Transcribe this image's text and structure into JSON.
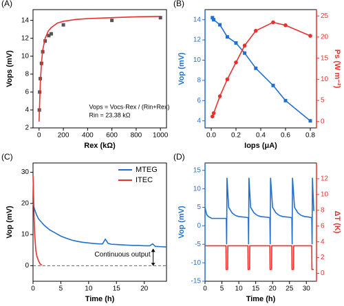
{
  "chart_data": [
    {
      "type": "scatter",
      "panel": "(A)",
      "xlabel": "Rex (kΩ)",
      "ylabel": "Vops (mV)",
      "xlim": [
        -50,
        1050
      ],
      "xticks": [
        0,
        200,
        400,
        600,
        800,
        1000
      ],
      "ylim": [
        2,
        15.2
      ],
      "yticks": [
        2,
        4,
        6,
        8,
        10,
        12,
        14
      ],
      "annotations": [
        "Vops = Vocs·Rex / (Rin+Rex)",
        "Rin = 23.38 kΩ"
      ],
      "series": [
        {
          "style": "markers",
          "color": "#555555",
          "x": [
            2,
            5,
            10,
            20,
            30,
            50,
            80,
            100,
            200,
            600,
            1000
          ],
          "values": [
            4.0,
            6.0,
            7.5,
            9.2,
            10.5,
            11.7,
            12.3,
            12.5,
            13.5,
            14.0,
            14.3
          ]
        },
        {
          "style": "line",
          "color": "#e8312f",
          "x": [
            0,
            5,
            10,
            20,
            30,
            50,
            75,
            100,
            150,
            200,
            300,
            400,
            600,
            800,
            1000
          ],
          "values": [
            2.7,
            5.0,
            7.0,
            9.3,
            10.7,
            12.0,
            12.8,
            13.2,
            13.7,
            13.9,
            14.1,
            14.2,
            14.3,
            14.4,
            14.45
          ]
        }
      ]
    },
    {
      "type": "line",
      "panel": "(B)",
      "xlabel": "Iops (μA)",
      "ylabel": "Vop (mV)",
      "y2label": "Ps (W m⁻²)",
      "xlim": [
        -0.05,
        0.85
      ],
      "xticks": [
        {
          "value": 0,
          "label": "0.0"
        },
        {
          "value": 0.2,
          "label": "0.2"
        },
        {
          "value": 0.4,
          "label": "0.4"
        },
        {
          "value": 0.6,
          "label": "0.6"
        },
        {
          "value": 0.8,
          "label": "0.8"
        }
      ],
      "ylim": [
        3.3,
        15
      ],
      "yticks": [
        4,
        6,
        8,
        10,
        12,
        14
      ],
      "y2lim": [
        -1.5,
        26.5
      ],
      "y2ticks": [
        0,
        5,
        10,
        15,
        20,
        25
      ],
      "ycolor": "#1f6fd1",
      "y2color": "#e8312f",
      "x": [
        0.01,
        0.02,
        0.07,
        0.13,
        0.2,
        0.27,
        0.36,
        0.5,
        0.6,
        0.8
      ],
      "series": [
        {
          "style": "line",
          "marker": "square",
          "color": "#1f6fd1",
          "values": [
            14.2,
            14.0,
            13.5,
            12.3,
            11.7,
            10.7,
            9.2,
            7.5,
            6.0,
            4.0
          ]
        },
        {
          "style": "line",
          "marker": "circle",
          "color": "#e8312f",
          "axis": "y2",
          "values": [
            1.2,
            2.0,
            6.0,
            10,
            14,
            18,
            21.5,
            23.5,
            22.8,
            20.3
          ]
        }
      ]
    },
    {
      "type": "line",
      "panel": "(C)",
      "xlabel": "Time (h)",
      "ylabel": "Vop (mV)",
      "xlim": [
        0,
        24
      ],
      "xticks": [
        0,
        5,
        10,
        15,
        20
      ],
      "ylim": [
        -5,
        33
      ],
      "yticks": [
        0,
        10,
        20,
        30
      ],
      "hline": 0,
      "legend": "upper right",
      "annotations": [
        "Continuous output"
      ],
      "series": [
        {
          "name": "MTEG",
          "style": "line",
          "color": "#1f6fd1",
          "x": [
            0,
            0.3,
            0.6,
            1,
            1.5,
            2,
            3,
            4,
            5,
            6,
            7,
            8,
            9,
            10,
            11,
            12,
            12.5,
            13,
            13.5,
            14,
            15,
            16,
            17,
            18,
            19,
            20,
            21,
            21.5,
            22,
            23,
            24
          ],
          "values": [
            20,
            18,
            16.5,
            15,
            14,
            13,
            11.5,
            10.5,
            9.5,
            8.8,
            8.2,
            7.8,
            7.5,
            7.3,
            7.1,
            7.0,
            7.0,
            8.5,
            7.2,
            6.9,
            6.8,
            6.7,
            6.6,
            6.5,
            6.5,
            6.4,
            6.4,
            7.0,
            6.2,
            6.1,
            6.0
          ]
        },
        {
          "name": "ITEC",
          "style": "line",
          "color": "#e8312f",
          "x": [
            0,
            0.1,
            0.2,
            0.3,
            0.5,
            0.7,
            1,
            1.3,
            1.6
          ],
          "values": [
            29,
            22,
            15,
            10,
            5,
            3,
            1.5,
            0.5,
            0.2
          ]
        }
      ]
    },
    {
      "type": "line",
      "panel": "(D)",
      "xlabel": "Time (h)",
      "ylabel": "Vop (mV)",
      "y2label": "ΔT (K)",
      "xlim": [
        0,
        33
      ],
      "xticks": [
        0,
        5,
        10,
        15,
        20,
        25,
        30
      ],
      "ylim": [
        -15,
        17
      ],
      "yticks": [
        -15,
        -10,
        -5,
        0,
        5,
        10,
        15
      ],
      "y2lim": [
        -1,
        14
      ],
      "y2ticks": [
        0,
        2,
        4,
        6,
        8,
        10,
        12
      ],
      "ycolor": "#1f6fd1",
      "y2color": "#e8312f",
      "series": [
        {
          "style": "line",
          "color": "#1f6fd1",
          "x": [
            0,
            0.5,
            1,
            2,
            3,
            4,
            5,
            6,
            6.3,
            6.4,
            6.5,
            7,
            8,
            9,
            10,
            11,
            12,
            12.8,
            12.9,
            13,
            13.5,
            14.5,
            15.5,
            16.5,
            17.5,
            18.5,
            19.2,
            19.3,
            19.4,
            20,
            21,
            22,
            23,
            24,
            25,
            25.7,
            25.8,
            25.9,
            26.5,
            27.5,
            28.5,
            29.5,
            30.5,
            31.6,
            31.7,
            31.8,
            32.2
          ],
          "values": [
            5,
            3,
            2.5,
            2,
            2,
            2,
            2,
            2,
            2,
            -5,
            13,
            5,
            3.5,
            2.8,
            2.5,
            2.4,
            2.3,
            2.2,
            -5,
            13,
            5,
            3.5,
            2.8,
            2.5,
            2.4,
            2.3,
            2.2,
            -5,
            13,
            5,
            3.5,
            2.8,
            2.5,
            2.4,
            2.3,
            2.2,
            -5,
            13,
            5,
            3.5,
            2.8,
            2.5,
            2.4,
            2.2,
            -5,
            13,
            4
          ]
        },
        {
          "style": "line",
          "color": "#e8312f",
          "axis": "y2",
          "x": [
            0,
            6.2,
            6.25,
            6.7,
            6.75,
            12.7,
            12.75,
            13.2,
            13.25,
            19.2,
            19.25,
            19.7,
            19.75,
            25.7,
            25.75,
            26.2,
            26.25,
            31.6,
            31.65,
            32.2
          ],
          "values": [
            3.5,
            3.5,
            0.5,
            0.5,
            3.5,
            3.5,
            0.5,
            0.5,
            3.5,
            3.5,
            0.5,
            0.5,
            3.5,
            3.5,
            0.5,
            0.5,
            3.5,
            3.5,
            0.5,
            0.5
          ]
        }
      ]
    }
  ]
}
